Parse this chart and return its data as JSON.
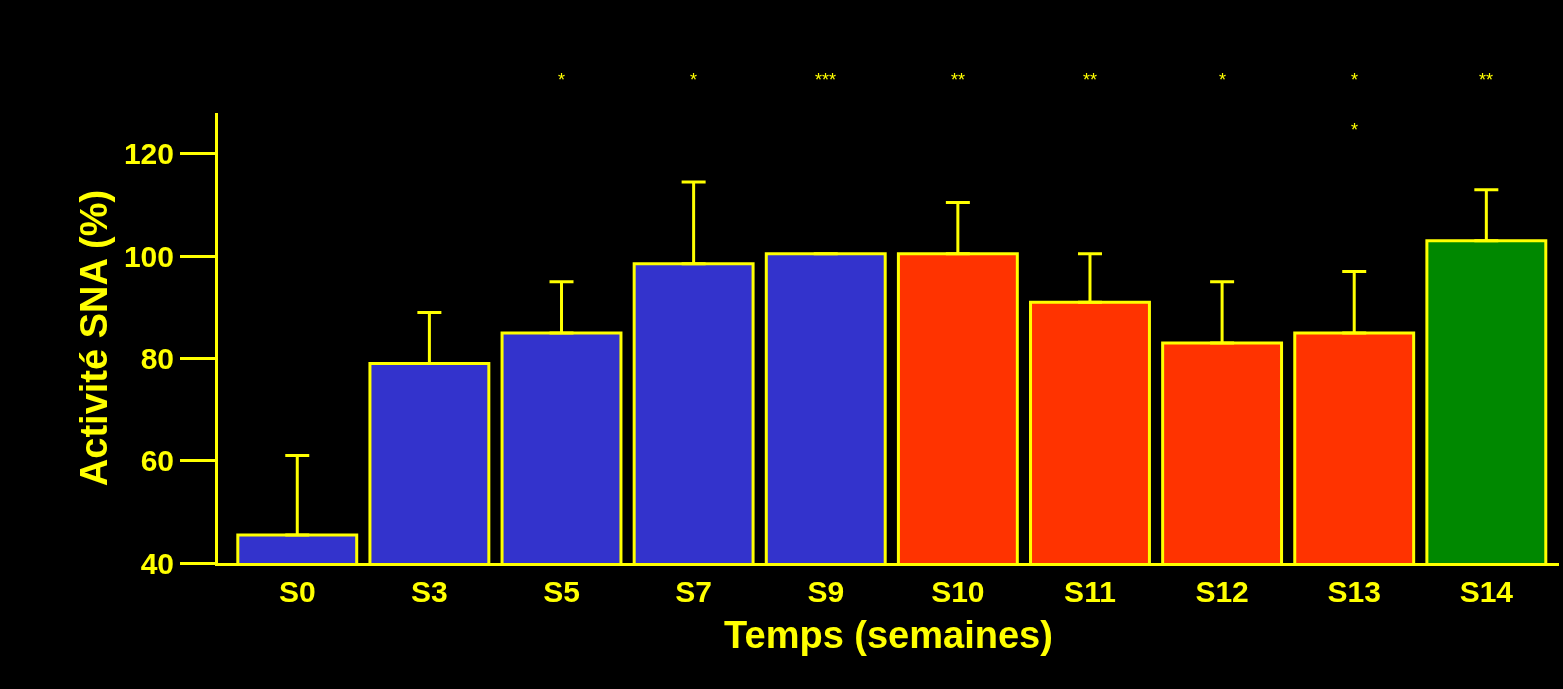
{
  "chart_data": {
    "type": "bar",
    "xlabel": "Temps (semaines)",
    "ylabel": "Activité SNA (%)",
    "categories": [
      "S0",
      "S3",
      "S5",
      "S7",
      "S9",
      "S10",
      "S11",
      "S12",
      "S13",
      "S14"
    ],
    "values": [
      45.5,
      79,
      85,
      98.5,
      100.5,
      100.5,
      91,
      83,
      85,
      103
    ],
    "errors": [
      [
        45.5,
        61
      ],
      [
        79,
        89
      ],
      [
        85,
        95
      ],
      [
        98.5,
        114.5
      ],
      null,
      [
        100.5,
        110.5
      ],
      [
        91,
        100.5
      ],
      [
        83,
        95
      ],
      [
        85,
        97
      ],
      [
        103,
        113
      ]
    ],
    "colors": [
      "#3333cc",
      "#3333cc",
      "#3333cc",
      "#3333cc",
      "#3333cc",
      "#ff3300",
      "#ff3300",
      "#ff3300",
      "#ff3300",
      "#008800"
    ],
    "ylim": [
      40,
      128
    ],
    "yticks": [
      40,
      60,
      80,
      100,
      120
    ],
    "grid": false,
    "legend": false,
    "annotations": [
      "*",
      "*",
      "***",
      "**",
      "**",
      "*",
      "*",
      "**",
      "*"
    ]
  }
}
